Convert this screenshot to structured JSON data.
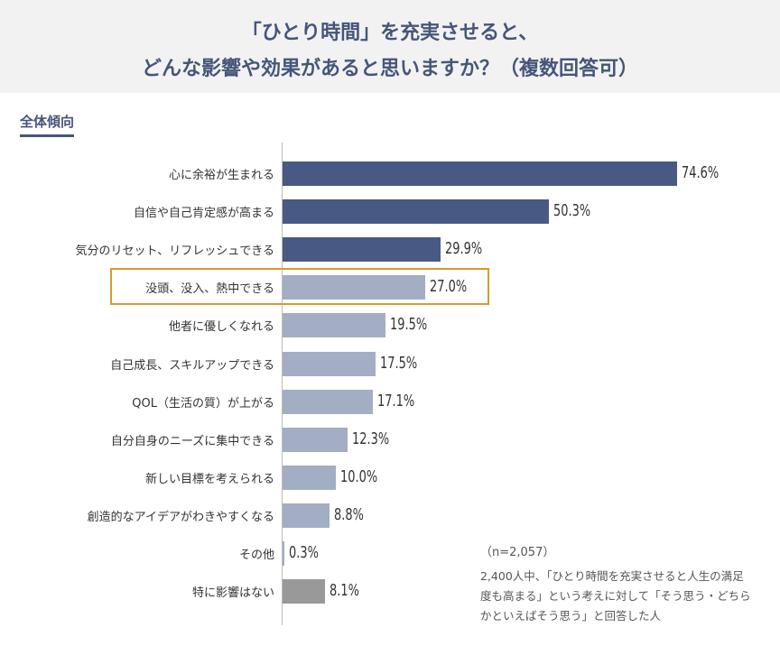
{
  "chart_data": {
    "type": "bar",
    "orientation": "horizontal",
    "title": [
      "「ひとり時間」を充実させると、",
      "どんな影響や効果があると思いますか？（複数回答可）"
    ],
    "subtitle": "全体傾向",
    "categories": [
      "心に余裕が生まれる",
      "自信や自己肯定感が高まる",
      "気分のリセット、リフレッシュできる",
      "没頭、没入、熱中できる",
      "他者に優しくなれる",
      "自己成長、スキルアップできる",
      "QOL（生活の質）が上がる",
      "自分自身のニーズに集中できる",
      "新しい目標を考えられる",
      "創造的なアイデアがわきやすくなる",
      "その他",
      "特に影響はない"
    ],
    "values": [
      74.6,
      50.3,
      29.9,
      27.0,
      19.5,
      17.5,
      17.1,
      12.3,
      10.0,
      8.8,
      0.3,
      8.1
    ],
    "value_labels": [
      "74.6%",
      "50.3%",
      "29.9%",
      "27.0%",
      "19.5%",
      "17.5%",
      "17.1%",
      "12.3%",
      "10.0%",
      "8.8%",
      "0.3%",
      "8.1%"
    ],
    "unit": "%",
    "highlighted_index": 3,
    "colors": {
      "top3": "#485a84",
      "others": "#a3adc4",
      "none": "#999999",
      "highlight_border": "#d9982f"
    },
    "grid": false,
    "sample_size": "（n=2,057）",
    "note": "2,400人中、「ひとり時間を充実させると人生の満足度も高まる」という考えに対して「そう思う・どちらかといえばそう思う」と回答した人"
  }
}
